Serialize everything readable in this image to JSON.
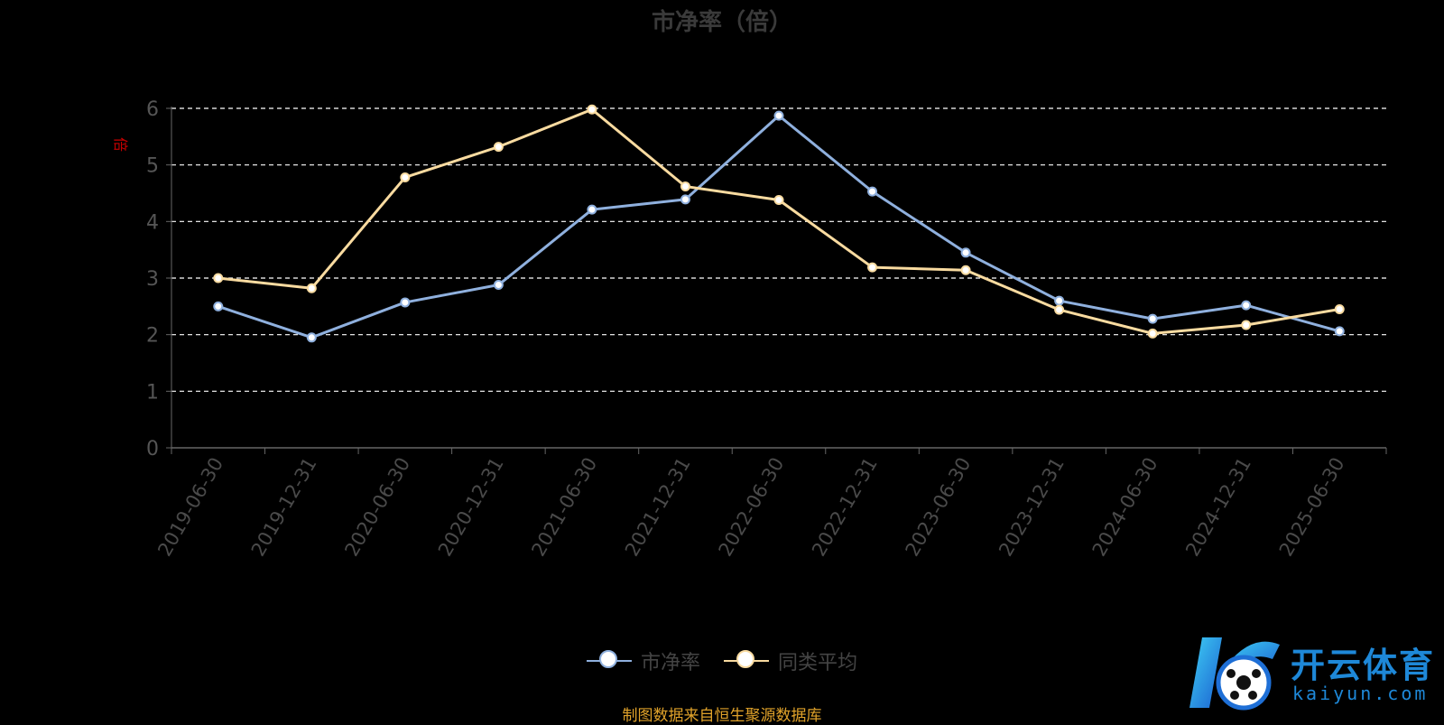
{
  "chart_data": {
    "type": "line",
    "title": "市净率（倍）",
    "ylabel": "倍",
    "ylim": [
      0,
      6
    ],
    "yticks": [
      0,
      1,
      2,
      3,
      4,
      5,
      6
    ],
    "grid": true,
    "legend_position": "bottom-center",
    "categories": [
      "2019-06-30",
      "2019-12-31",
      "2020-06-30",
      "2020-12-31",
      "2021-06-30",
      "2021-12-31",
      "2022-06-30",
      "2022-12-31",
      "2023-06-30",
      "2023-12-31",
      "2024-06-30",
      "2024-12-31",
      "2025-06-30"
    ],
    "series": [
      {
        "name": "市净率",
        "color": "#8fb0de",
        "values": [
          2.5,
          1.95,
          2.57,
          2.88,
          4.21,
          4.39,
          5.87,
          4.53,
          3.45,
          2.6,
          2.28,
          2.52,
          2.06
        ]
      },
      {
        "name": "同类平均",
        "color": "#f9dba0",
        "values": [
          3.0,
          2.82,
          4.78,
          5.32,
          5.98,
          4.62,
          4.38,
          3.19,
          3.14,
          2.44,
          2.02,
          2.17,
          2.45
        ]
      }
    ]
  },
  "legend": {
    "series1_label": "市净率",
    "series2_label": "同类平均"
  },
  "source_note": "制图数据来自恒生聚源数据库",
  "watermark": {
    "logo_text": "开云体育",
    "sub_text": "kaiyun.com",
    "icon": "kaiyun-logo-icon"
  }
}
